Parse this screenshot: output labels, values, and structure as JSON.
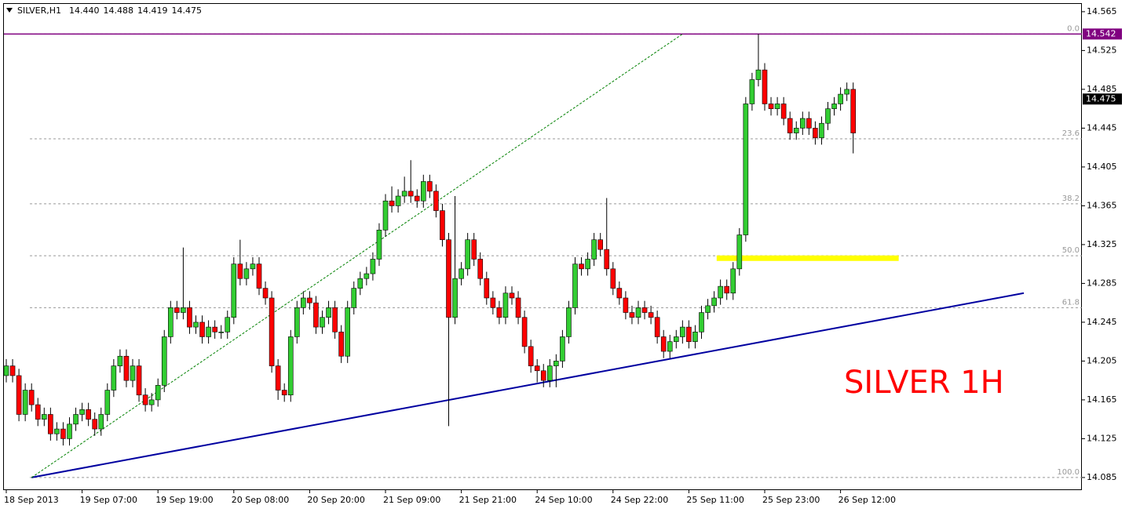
{
  "chart_data": {
    "type": "candlestick",
    "title": "SILVER,H1",
    "header_prices": [
      "14.440",
      "14.488",
      "14.419",
      "14.475"
    ],
    "annotation": "SILVER 1H",
    "annotation_color": "#ff0000",
    "up_color": "#32cd32",
    "down_color": "#ff0000",
    "categories": [
      "18 Sep 2013",
      null,
      null,
      null,
      null,
      null,
      null,
      null,
      null,
      null,
      null,
      null,
      "19 Sep 07:00",
      null,
      null,
      null,
      null,
      null,
      null,
      null,
      null,
      null,
      null,
      null,
      "19 Sep 19:00",
      null,
      null,
      null,
      null,
      null,
      null,
      null,
      null,
      null,
      null,
      null,
      "20 Sep 08:00",
      null,
      null,
      null,
      null,
      null,
      null,
      null,
      null,
      null,
      null,
      null,
      "20 Sep 20:00",
      null,
      null,
      null,
      null,
      null,
      null,
      null,
      null,
      null,
      null,
      null,
      "21 Sep 09:00",
      null,
      null,
      null,
      null,
      null,
      null,
      null,
      null,
      null,
      null,
      null,
      "21 Sep 21:00",
      null,
      null,
      null,
      null,
      null,
      null,
      null,
      null,
      null,
      null,
      null,
      "24 Sep 10:00",
      null,
      null,
      null,
      null,
      null,
      null,
      null,
      null,
      null,
      null,
      null,
      "24 Sep 22:00",
      null,
      null,
      null,
      null,
      null,
      null,
      null,
      null,
      null,
      null,
      null,
      "25 Sep 11:00",
      null,
      null,
      null,
      null,
      null,
      null,
      null,
      null,
      null,
      null,
      null,
      "25 Sep 23:00",
      null,
      null,
      null,
      null,
      null,
      null,
      null,
      null,
      null,
      null,
      null,
      "26 Sep 12:00",
      null,
      null
    ],
    "open": [
      14.19,
      14.2,
      14.19,
      14.15,
      14.175,
      14.16,
      14.145,
      14.15,
      14.13,
      14.135,
      14.125,
      14.14,
      14.15,
      14.155,
      14.145,
      14.135,
      14.15,
      14.175,
      14.2,
      14.21,
      14.185,
      14.2,
      14.17,
      14.16,
      14.165,
      14.18,
      14.23,
      14.26,
      14.255,
      14.26,
      14.24,
      14.245,
      14.23,
      14.24,
      14.235,
      14.235,
      14.25,
      14.305,
      14.29,
      14.3,
      14.305,
      14.28,
      14.27,
      14.2,
      14.175,
      14.17,
      14.23,
      14.26,
      14.27,
      14.265,
      14.24,
      14.25,
      14.26,
      14.235,
      14.21,
      14.26,
      14.28,
      14.29,
      14.295,
      14.31,
      14.34,
      14.37,
      14.365,
      14.375,
      14.38,
      14.375,
      14.37,
      14.39,
      14.38,
      14.36,
      14.33,
      14.25,
      14.29,
      14.3,
      14.33,
      14.31,
      14.29,
      14.27,
      14.26,
      14.25,
      14.275,
      14.27,
      14.25,
      14.22,
      14.2,
      14.195,
      14.185,
      14.2,
      14.205,
      14.23,
      14.26,
      14.305,
      14.3,
      14.31,
      14.33,
      14.32,
      14.3,
      14.28,
      14.27,
      14.255,
      14.25,
      14.26,
      14.255,
      14.25,
      14.23,
      14.215,
      14.225,
      14.23,
      14.24,
      14.225,
      14.235,
      14.255,
      14.262,
      14.27,
      14.282,
      14.275,
      14.3,
      14.335,
      14.47,
      14.495,
      14.505,
      14.47,
      14.465,
      14.47,
      14.455,
      14.44,
      14.445,
      14.455,
      14.445,
      14.435,
      14.45,
      14.465,
      14.47,
      14.48,
      14.485
    ],
    "high": [
      14.207,
      14.207,
      14.197,
      14.182,
      14.182,
      14.167,
      14.157,
      14.157,
      14.142,
      14.142,
      14.147,
      14.157,
      14.162,
      14.162,
      14.152,
      14.157,
      14.182,
      14.207,
      14.217,
      14.217,
      14.207,
      14.207,
      14.177,
      14.172,
      14.187,
      14.237,
      14.267,
      14.267,
      14.322,
      14.267,
      14.252,
      14.252,
      14.247,
      14.247,
      14.242,
      14.257,
      14.312,
      14.33,
      14.307,
      14.312,
      14.312,
      14.287,
      14.277,
      14.207,
      14.182,
      14.237,
      14.267,
      14.277,
      14.277,
      14.272,
      14.257,
      14.267,
      14.267,
      14.242,
      14.267,
      14.287,
      14.297,
      14.302,
      14.317,
      14.347,
      14.377,
      14.385,
      14.382,
      14.395,
      14.412,
      14.382,
      14.397,
      14.397,
      14.387,
      14.367,
      14.337,
      14.375,
      14.307,
      14.337,
      14.337,
      14.317,
      14.297,
      14.277,
      14.267,
      14.282,
      14.282,
      14.277,
      14.257,
      14.227,
      14.207,
      14.202,
      14.207,
      14.212,
      14.237,
      14.267,
      14.312,
      14.312,
      14.317,
      14.337,
      14.337,
      14.373,
      14.307,
      14.287,
      14.277,
      14.262,
      14.267,
      14.267,
      14.262,
      14.257,
      14.237,
      14.232,
      14.237,
      14.247,
      14.247,
      14.242,
      14.262,
      14.269,
      14.277,
      14.289,
      14.289,
      14.307,
      14.342,
      14.477,
      14.502,
      14.542,
      14.512,
      14.477,
      14.477,
      14.477,
      14.462,
      14.452,
      14.462,
      14.462,
      14.452,
      14.457,
      14.472,
      14.477,
      14.487,
      14.492,
      14.492
    ],
    "low": [
      14.183,
      14.183,
      14.143,
      14.143,
      14.153,
      14.138,
      14.138,
      14.123,
      14.123,
      14.118,
      14.118,
      14.133,
      14.143,
      14.138,
      14.128,
      14.128,
      14.143,
      14.168,
      14.193,
      14.178,
      14.178,
      14.163,
      14.153,
      14.153,
      14.158,
      14.173,
      14.223,
      14.248,
      14.248,
      14.233,
      14.233,
      14.223,
      14.223,
      14.228,
      14.228,
      14.228,
      14.243,
      14.283,
      14.283,
      14.293,
      14.273,
      14.263,
      14.193,
      14.165,
      14.163,
      14.163,
      14.223,
      14.253,
      14.258,
      14.233,
      14.233,
      14.243,
      14.228,
      14.203,
      14.203,
      14.253,
      14.273,
      14.283,
      14.288,
      14.303,
      14.333,
      14.358,
      14.358,
      14.368,
      14.368,
      14.363,
      14.363,
      14.373,
      14.353,
      14.323,
      14.138,
      14.243,
      14.283,
      14.293,
      14.303,
      14.283,
      14.263,
      14.253,
      14.243,
      14.243,
      14.263,
      14.243,
      14.213,
      14.193,
      14.183,
      14.178,
      14.178,
      14.178,
      14.198,
      14.223,
      14.253,
      14.293,
      14.293,
      14.303,
      14.313,
      14.293,
      14.273,
      14.263,
      14.248,
      14.243,
      14.243,
      14.248,
      14.243,
      14.223,
      14.208,
      14.208,
      14.218,
      14.223,
      14.218,
      14.218,
      14.228,
      14.248,
      14.255,
      14.263,
      14.268,
      14.268,
      14.293,
      14.328,
      14.463,
      14.488,
      14.463,
      14.458,
      14.458,
      14.448,
      14.433,
      14.433,
      14.438,
      14.438,
      14.428,
      14.428,
      14.443,
      14.458,
      14.463,
      14.473,
      14.419
    ],
    "close": [
      14.2,
      14.19,
      14.15,
      14.175,
      14.16,
      14.145,
      14.15,
      14.13,
      14.135,
      14.125,
      14.14,
      14.15,
      14.155,
      14.145,
      14.135,
      14.15,
      14.175,
      14.2,
      14.21,
      14.185,
      14.2,
      14.17,
      14.16,
      14.165,
      14.18,
      14.23,
      14.26,
      14.255,
      14.26,
      14.24,
      14.245,
      14.23,
      14.24,
      14.235,
      14.235,
      14.25,
      14.305,
      14.29,
      14.3,
      14.305,
      14.28,
      14.27,
      14.2,
      14.175,
      14.17,
      14.23,
      14.26,
      14.27,
      14.265,
      14.24,
      14.25,
      14.26,
      14.235,
      14.21,
      14.26,
      14.28,
      14.29,
      14.295,
      14.31,
      14.34,
      14.37,
      14.365,
      14.375,
      14.38,
      14.375,
      14.37,
      14.39,
      14.38,
      14.36,
      14.33,
      14.25,
      14.29,
      14.3,
      14.33,
      14.31,
      14.29,
      14.27,
      14.26,
      14.25,
      14.275,
      14.27,
      14.25,
      14.22,
      14.2,
      14.195,
      14.185,
      14.2,
      14.205,
      14.23,
      14.26,
      14.305,
      14.3,
      14.31,
      14.33,
      14.32,
      14.3,
      14.28,
      14.27,
      14.255,
      14.25,
      14.26,
      14.255,
      14.25,
      14.23,
      14.215,
      14.225,
      14.23,
      14.24,
      14.225,
      14.235,
      14.255,
      14.262,
      14.27,
      14.282,
      14.275,
      14.3,
      14.335,
      14.47,
      14.495,
      14.505,
      14.47,
      14.465,
      14.47,
      14.455,
      14.44,
      14.445,
      14.455,
      14.445,
      14.435,
      14.45,
      14.465,
      14.47,
      14.48,
      14.485,
      14.44
    ],
    "ylim": [
      14.072,
      14.573
    ],
    "yticks": [
      14.085,
      14.125,
      14.165,
      14.205,
      14.245,
      14.285,
      14.325,
      14.365,
      14.405,
      14.445,
      14.485,
      14.525,
      14.565
    ],
    "high_line": {
      "value": 14.542,
      "color": "#800080"
    },
    "bid_line": {
      "value": 14.475,
      "color": "#000000"
    },
    "fib_levels": [
      {
        "label": "0.0",
        "price": 14.542
      },
      {
        "label": "23.6",
        "price": 14.434
      },
      {
        "label": "38.2",
        "price": 14.367
      },
      {
        "label": "50.0",
        "price": 14.3135
      },
      {
        "label": "61.8",
        "price": 14.26
      },
      {
        "label": "100.0",
        "price": 14.085
      }
    ],
    "trend_lines": [
      {
        "x": [
          4,
          161
        ],
        "y": [
          14.085,
          14.275
        ],
        "color": "#0000a0",
        "dashed": false,
        "width": 2
      },
      {
        "x": [
          4,
          107
        ],
        "y": [
          14.085,
          14.542
        ],
        "color": "#008000",
        "dashed": true,
        "width": 1
      },
      {
        "x": [
          112.4,
          141.2
        ],
        "y": [
          14.311,
          14.311
        ],
        "color": "#ffff00",
        "dashed": false,
        "width": 7
      }
    ]
  }
}
